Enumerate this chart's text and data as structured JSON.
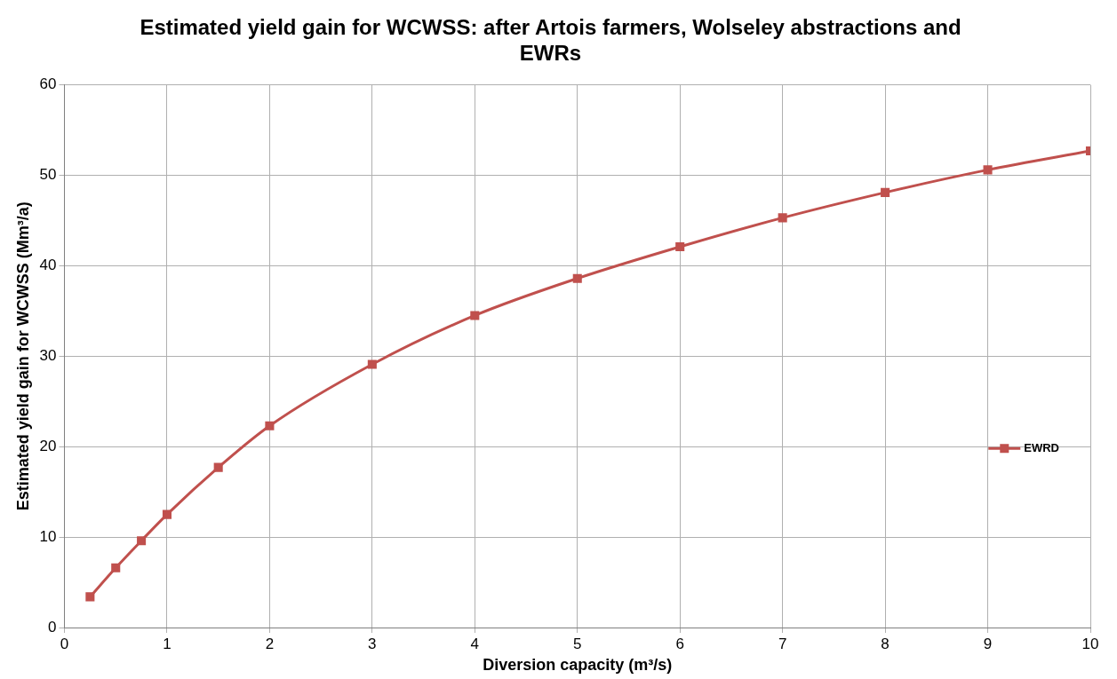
{
  "chart_data": {
    "type": "line",
    "title": "Estimated yield gain for WCWSS: after Artois farmers, Wolseley abstractions and EWRs",
    "xlabel": "Diversion capacity (m³/s)",
    "ylabel": "Estimated yield gain for WCWSS (Mm³/a)",
    "x": [
      0.25,
      0.5,
      0.75,
      1,
      1.5,
      2,
      3,
      4,
      5,
      6,
      7,
      8,
      9,
      10
    ],
    "series": [
      {
        "name": "EWRD",
        "color": "#c0504d",
        "values": [
          3.4,
          6.6,
          9.6,
          12.5,
          17.7,
          22.3,
          29.1,
          34.5,
          38.6,
          42.1,
          45.3,
          48.1,
          50.6,
          52.7
        ]
      }
    ],
    "xlim": [
      0,
      10
    ],
    "xticks": [
      0,
      1,
      2,
      3,
      4,
      5,
      6,
      7,
      8,
      9,
      10
    ],
    "ylim": [
      0,
      60
    ],
    "yticks": [
      0,
      10,
      20,
      30,
      40,
      50,
      60
    ],
    "grid": true,
    "legend": "right",
    "marker": "square",
    "line_style": "solid"
  }
}
